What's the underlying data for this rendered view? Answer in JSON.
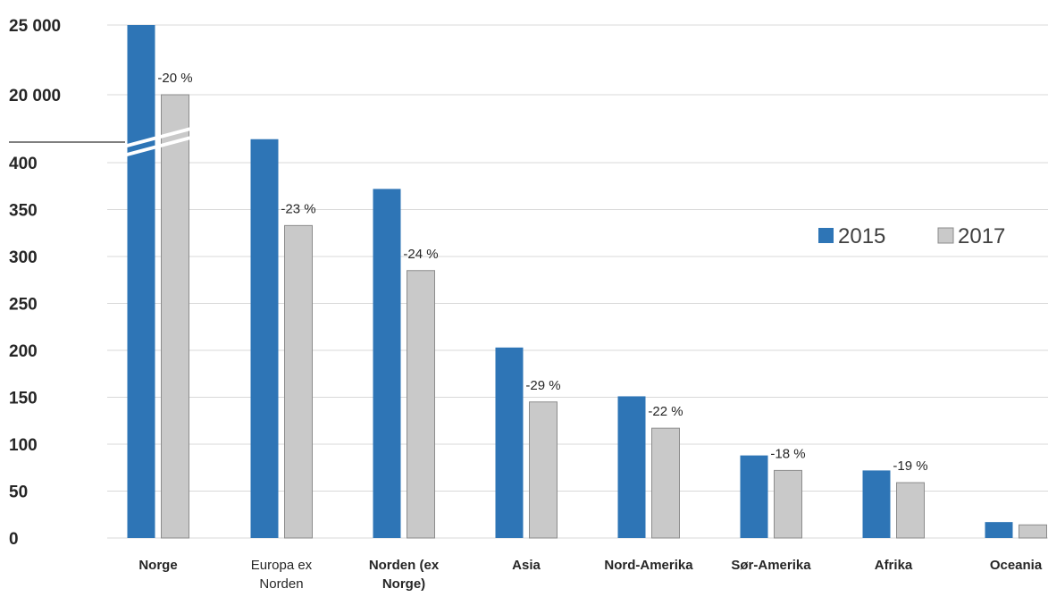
{
  "chart_data": {
    "type": "bar",
    "title": "",
    "xlabel": "",
    "ylabel": "",
    "broken_axis": true,
    "ylim_lower": [
      0,
      450
    ],
    "ylim_upper": [
      20000,
      25000
    ],
    "y_ticks_lower": [
      "0",
      "50",
      "100",
      "150",
      "200",
      "250",
      "300",
      "350",
      "400"
    ],
    "y_ticks_upper": [
      "20 000",
      "25 000"
    ],
    "grid": true,
    "legend_position": "right",
    "categories": [
      {
        "label": "Norge",
        "bold": true
      },
      {
        "label": "Europa ex Norden",
        "bold": false
      },
      {
        "label": "Norden (ex Norge)",
        "bold": true
      },
      {
        "label": "Asia",
        "bold": true
      },
      {
        "label": "Nord-Amerika",
        "bold": true
      },
      {
        "label": "Sør-Amerika",
        "bold": true
      },
      {
        "label": "Afrika",
        "bold": true
      },
      {
        "label": "Oceania",
        "bold": true
      }
    ],
    "series": [
      {
        "name": "2015",
        "color": "#2e75b6",
        "values": [
          25000,
          425,
          372,
          203,
          151,
          88,
          72,
          17
        ]
      },
      {
        "name": "2017",
        "color": "#c9c9c9",
        "values": [
          20000,
          333,
          285,
          145,
          117,
          72,
          59,
          14
        ]
      }
    ],
    "change_labels": [
      "-20 %",
      "-23 %",
      "-24 %",
      "-29 %",
      "-22 %",
      "-18 %",
      "-19 %",
      ""
    ]
  }
}
